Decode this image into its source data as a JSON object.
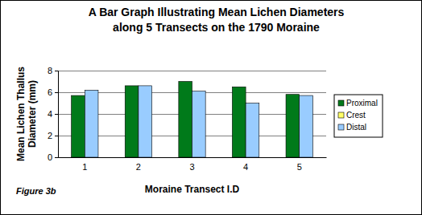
{
  "chart_data": {
    "type": "bar",
    "title": [
      "A Bar Graph Illustrating Mean Lichen Diameters",
      "along 5 Transects on the 1790 Moraine"
    ],
    "x_label": "Moraine Transect I.D",
    "y_label": [
      "Mean Lichen Thallus",
      "Diameter (mm)"
    ],
    "annotation": "Figure 3b",
    "categories": [
      "1",
      "2",
      "3",
      "4",
      "5"
    ],
    "series": [
      {
        "name": "Proximal",
        "color": "#007a1a",
        "values": [
          5.7,
          6.6,
          7.0,
          6.5,
          5.8
        ]
      },
      {
        "name": "Crest",
        "color": "#ffff66",
        "values": [
          null,
          null,
          null,
          null,
          null
        ]
      },
      {
        "name": "Distal",
        "color": "#99ccff",
        "values": [
          6.2,
          6.6,
          6.1,
          5.0,
          5.7
        ]
      }
    ],
    "ylim": [
      0,
      8
    ],
    "yticks": [
      0,
      2,
      4,
      6,
      8
    ],
    "grid": true,
    "legend": "right"
  }
}
